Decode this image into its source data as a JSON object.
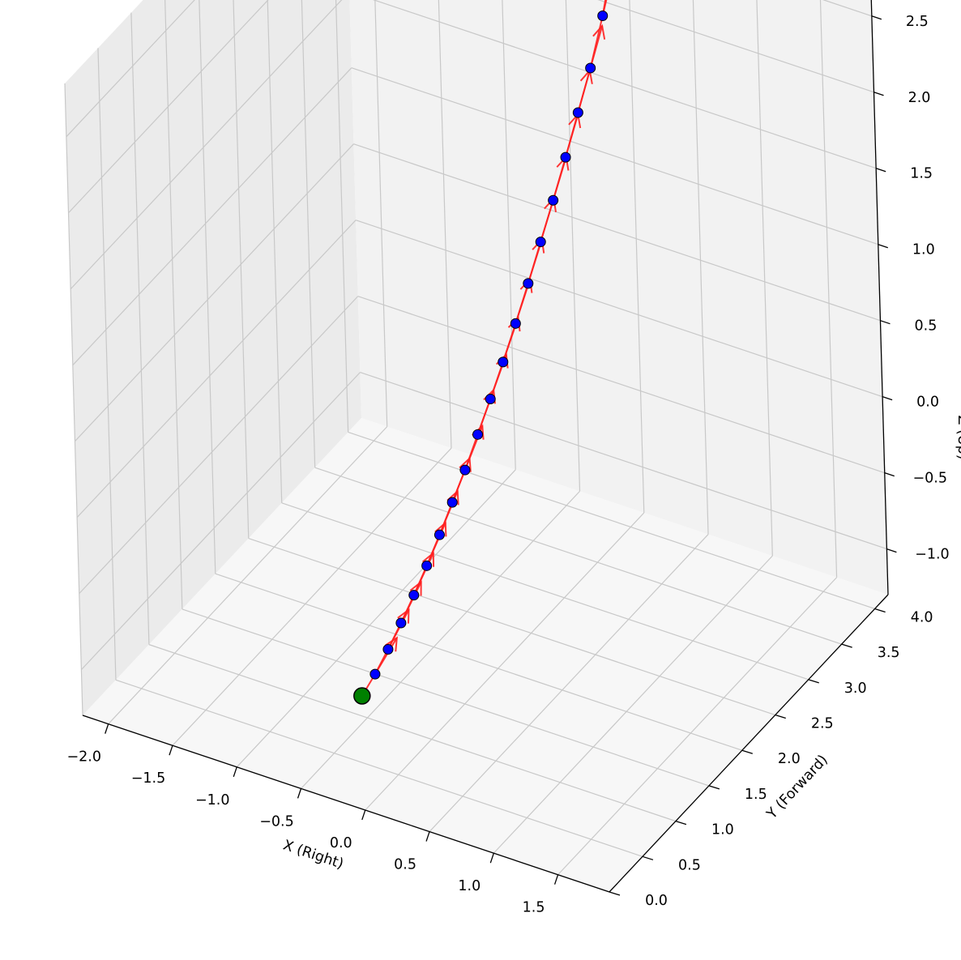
{
  "chart_data": {
    "type": "scatter3d",
    "title": "",
    "xlabel": "X (Right)",
    "ylabel": "Y (Forward)",
    "zlabel": "Z (Up)",
    "xlim": [
      -2.2,
      1.9
    ],
    "ylim": [
      0.0,
      4.2
    ],
    "zlim": [
      -1.3,
      2.85
    ],
    "x_ticks": [
      "−2.0",
      "−1.5",
      "−1.0",
      "−0.5",
      "0.0",
      "0.5",
      "1.0",
      "1.5"
    ],
    "x_tick_values": [
      -2.0,
      -1.5,
      -1.0,
      -0.5,
      0.0,
      0.5,
      1.0,
      1.5
    ],
    "y_ticks": [
      "0.0",
      "0.5",
      "1.0",
      "1.5",
      "2.0",
      "2.5",
      "3.0",
      "3.5",
      "4.0"
    ],
    "y_tick_values": [
      0.0,
      0.5,
      1.0,
      1.5,
      2.0,
      2.5,
      3.0,
      3.5,
      4.0
    ],
    "z_ticks": [
      "−1.0",
      "−0.5",
      "0.0",
      "0.5",
      "1.0",
      "1.5",
      "2.0",
      "2.5"
    ],
    "z_tick_values": [
      -1.0,
      -0.5,
      0.0,
      0.5,
      1.0,
      1.5,
      2.0,
      2.5
    ],
    "grid": true,
    "colors": {
      "points": "#0000ff",
      "start": "#008000",
      "end": "#ff0000",
      "arrows": "#ff2020",
      "pane_left": "#ebebeb",
      "pane_back": "#f2f2f2",
      "pane_floor": "#f7f7f7",
      "grid": "#c8c8c8"
    },
    "trajectory": {
      "start": {
        "x": 0.0,
        "y": 0.0,
        "z": -0.55
      },
      "end": {
        "x": 0.0,
        "y": 4.0,
        "z": 2.5
      },
      "points": [
        {
          "x": 0.0,
          "y": 0.2,
          "z": -0.5
        },
        {
          "x": 0.0,
          "y": 0.4,
          "z": -0.43
        },
        {
          "x": 0.0,
          "y": 0.6,
          "z": -0.35
        },
        {
          "x": 0.0,
          "y": 0.8,
          "z": -0.26
        },
        {
          "x": 0.0,
          "y": 1.0,
          "z": -0.16
        },
        {
          "x": 0.0,
          "y": 1.2,
          "z": -0.05
        },
        {
          "x": 0.0,
          "y": 1.4,
          "z": 0.07
        },
        {
          "x": 0.0,
          "y": 1.6,
          "z": 0.19
        },
        {
          "x": 0.0,
          "y": 1.8,
          "z": 0.33
        },
        {
          "x": 0.0,
          "y": 2.0,
          "z": 0.47
        },
        {
          "x": 0.0,
          "y": 2.2,
          "z": 0.62
        },
        {
          "x": 0.0,
          "y": 2.4,
          "z": 0.78
        },
        {
          "x": 0.0,
          "y": 2.6,
          "z": 0.95
        },
        {
          "x": 0.0,
          "y": 2.8,
          "z": 1.13
        },
        {
          "x": 0.0,
          "y": 3.0,
          "z": 1.31
        },
        {
          "x": 0.0,
          "y": 3.2,
          "z": 1.5
        },
        {
          "x": 0.0,
          "y": 3.4,
          "z": 1.7
        },
        {
          "x": 0.0,
          "y": 3.6,
          "z": 1.9
        },
        {
          "x": 0.0,
          "y": 3.8,
          "z": 2.15
        }
      ],
      "arrow_length": 0.55
    }
  }
}
